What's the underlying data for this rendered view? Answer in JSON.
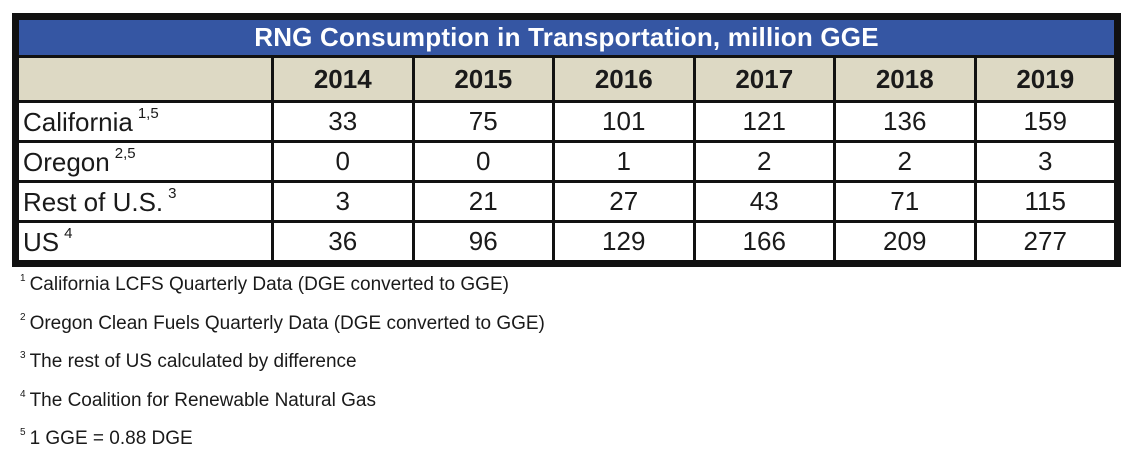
{
  "table": {
    "title": "RNG Consumption in Transportation, million GGE",
    "years": [
      "2014",
      "2015",
      "2016",
      "2017",
      "2018",
      "2019"
    ],
    "rows": [
      {
        "label": "California",
        "sup": "1,5",
        "values": [
          "33",
          "75",
          "101",
          "121",
          "136",
          "159"
        ]
      },
      {
        "label": "Oregon",
        "sup": "2,5",
        "values": [
          "0",
          "0",
          "1",
          "2",
          "2",
          "3"
        ]
      },
      {
        "label": "Rest of U.S.",
        "sup": "3",
        "values": [
          "3",
          "21",
          "27",
          "43",
          "71",
          "115"
        ]
      },
      {
        "label": "US",
        "sup": "4",
        "values": [
          "36",
          "96",
          "129",
          "166",
          "209",
          "277"
        ]
      }
    ]
  },
  "footnotes": [
    {
      "num": "1",
      "text": "California LCFS Quarterly Data (DGE converted to GGE)"
    },
    {
      "num": "2",
      "text": "Oregon Clean Fuels Quarterly Data (DGE converted to GGE)"
    },
    {
      "num": "3",
      "text": "The rest of US calculated by difference"
    },
    {
      "num": "4",
      "text": "The Coalition for Renewable Natural Gas"
    },
    {
      "num": "5",
      "text": "1 GGE = 0.88 DGE"
    }
  ]
}
